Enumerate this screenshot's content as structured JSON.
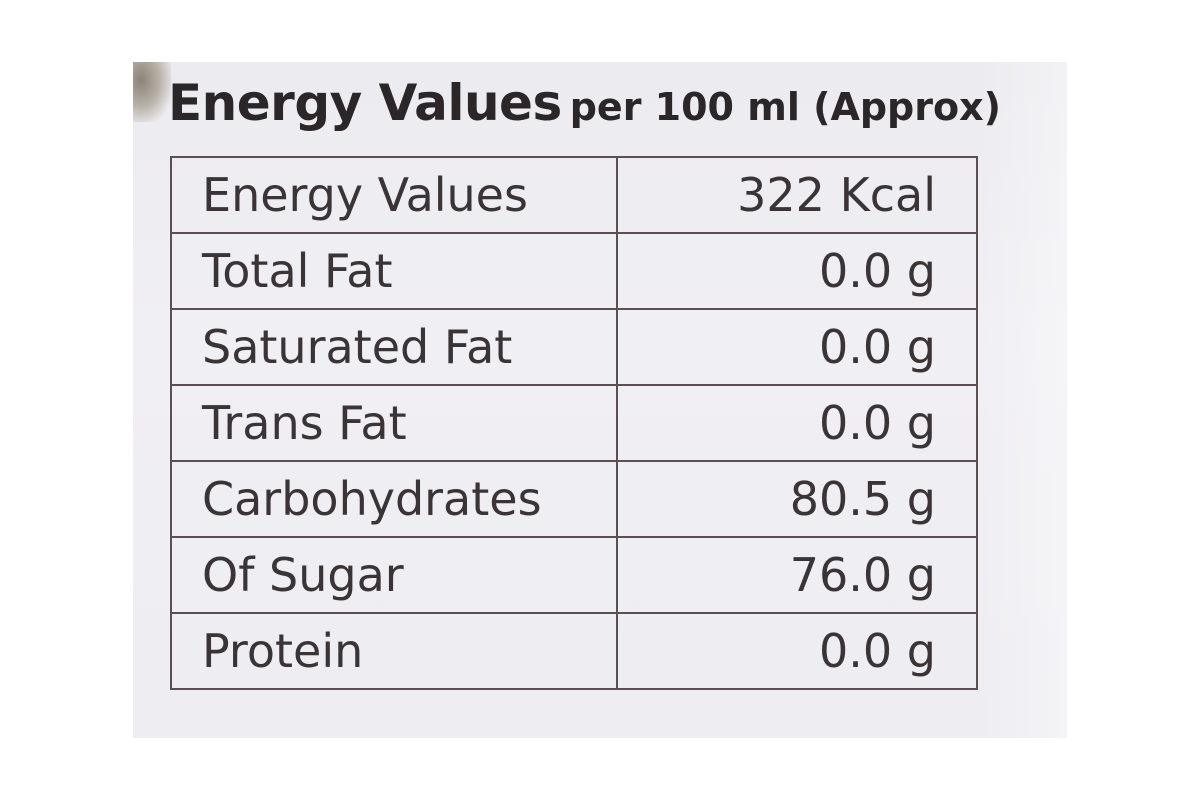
{
  "label": {
    "heading_main": "Energy Values",
    "heading_sub": "per 100 ml (Approx)",
    "rows": [
      {
        "name": "Energy Values",
        "value": "322 Kcal"
      },
      {
        "name": "Total Fat",
        "value": "0.0 g"
      },
      {
        "name": "Saturated Fat",
        "value": "0.0 g"
      },
      {
        "name": "Trans Fat",
        "value": "0.0 g"
      },
      {
        "name": "Carbohydrates",
        "value": "80.5 g"
      },
      {
        "name": "Of Sugar",
        "value": "76.0 g"
      },
      {
        "name": "Protein",
        "value": "0.0 g"
      }
    ]
  }
}
